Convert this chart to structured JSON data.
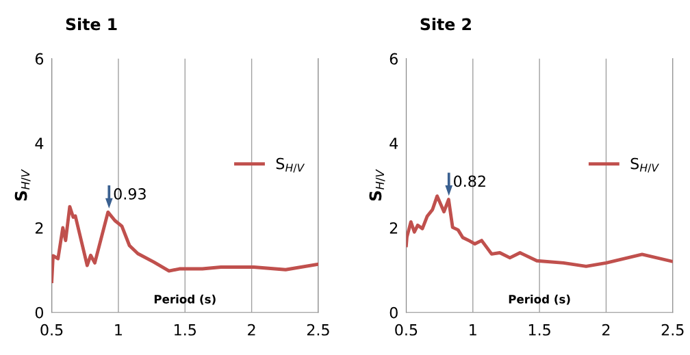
{
  "chart_data": [
    {
      "type": "line",
      "title": "Site 1",
      "xlabel": "Period (s)",
      "ylabel": "S$_{H/V}$",
      "xlim": [
        0.5,
        2.5
      ],
      "xticks": [
        0.5,
        1,
        1.5,
        2,
        2.5
      ],
      "ylim": [
        0,
        6
      ],
      "yticks": [
        0,
        2,
        4,
        6
      ],
      "grid": "x",
      "legend": "right",
      "marker": "none",
      "line_style": "solid",
      "annotations": [
        {
          "text": "0.93",
          "x": 0.93,
          "y": 2.37
        }
      ],
      "series": [
        {
          "name": "S$_{H/V}$",
          "color": "#c0504d",
          "x": [
            0.5,
            0.51,
            0.547,
            0.583,
            0.604,
            0.635,
            0.661,
            0.677,
            0.766,
            0.792,
            0.823,
            0.922,
            0.974,
            1.026,
            1.083,
            1.146,
            1.266,
            1.38,
            1.458,
            1.63,
            1.77,
            2.016,
            2.255,
            2.5
          ],
          "values": [
            0.73,
            1.34,
            1.27,
            2.0,
            1.7,
            2.5,
            2.25,
            2.28,
            1.11,
            1.35,
            1.17,
            2.37,
            2.17,
            2.04,
            1.58,
            1.39,
            1.19,
            0.98,
            1.03,
            1.03,
            1.07,
            1.07,
            1.01,
            1.14
          ]
        }
      ]
    },
    {
      "type": "line",
      "title": "Site 2",
      "xlabel": "Period (s)",
      "ylabel": "S$_{H/V}$",
      "xlim": [
        0.5,
        2.5
      ],
      "xticks": [
        0.5,
        1,
        1.5,
        2,
        2.5
      ],
      "ylim": [
        0,
        6
      ],
      "yticks": [
        0,
        2,
        4,
        6
      ],
      "grid": "x",
      "legend": "right",
      "marker": "none",
      "line_style": "solid",
      "annotations": [
        {
          "text": "0.82",
          "x": 0.82,
          "y": 2.67
        }
      ],
      "series": [
        {
          "name": "S$_{H/V}$",
          "color": "#c0504d",
          "x": [
            0.5,
            0.505,
            0.535,
            0.561,
            0.586,
            0.621,
            0.657,
            0.697,
            0.732,
            0.783,
            0.818,
            0.848,
            0.889,
            0.924,
            0.975,
            1.015,
            1.066,
            1.141,
            1.202,
            1.278,
            1.354,
            1.48,
            1.68,
            1.85,
            2.0,
            2.27,
            2.49
          ],
          "values": [
            1.58,
            1.78,
            2.14,
            1.9,
            2.06,
            1.98,
            2.27,
            2.43,
            2.75,
            2.38,
            2.67,
            2.01,
            1.95,
            1.77,
            1.69,
            1.62,
            1.7,
            1.38,
            1.41,
            1.29,
            1.41,
            1.22,
            1.17,
            1.09,
            1.17,
            1.37,
            1.21
          ]
        }
      ]
    }
  ]
}
